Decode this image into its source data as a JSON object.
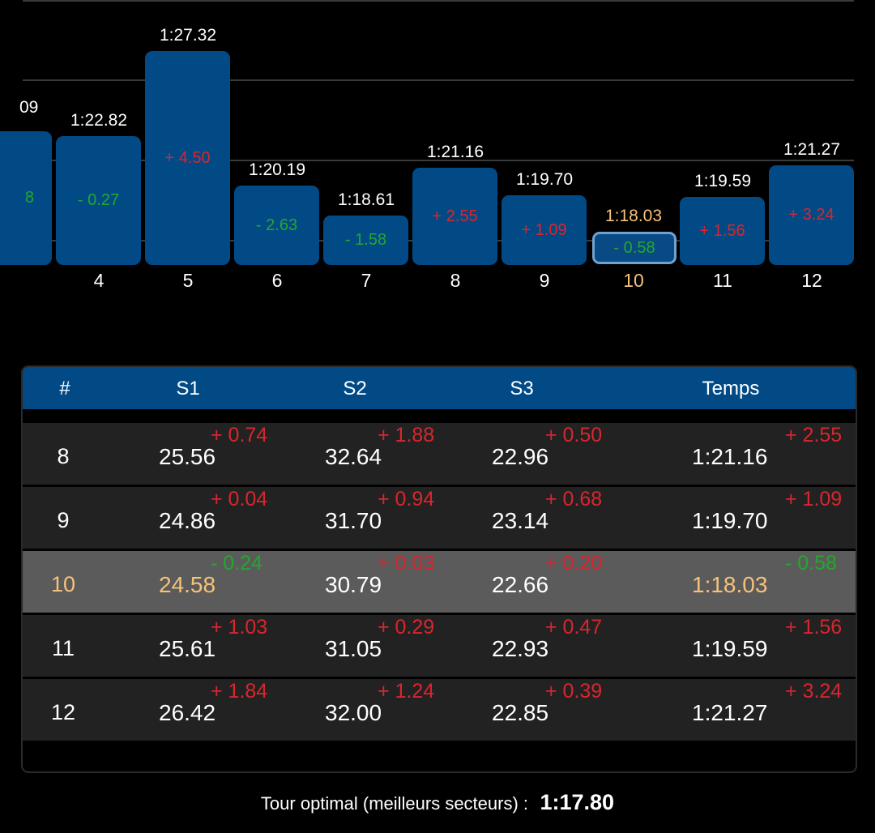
{
  "chart": {
    "partial_left": {
      "time": "09",
      "delta": "8"
    },
    "bars": [
      {
        "lap": "4",
        "time": "1:22.82",
        "delta": "- 0.27",
        "sign": "neg",
        "value": 82.82
      },
      {
        "lap": "5",
        "time": "1:27.32",
        "delta": "+ 4.50",
        "sign": "pos",
        "value": 87.32
      },
      {
        "lap": "6",
        "time": "1:20.19",
        "delta": "- 2.63",
        "sign": "neg",
        "value": 80.19
      },
      {
        "lap": "7",
        "time": "1:18.61",
        "delta": "- 1.58",
        "sign": "neg",
        "value": 78.61
      },
      {
        "lap": "8",
        "time": "1:21.16",
        "delta": "+ 2.55",
        "sign": "pos",
        "value": 81.16
      },
      {
        "lap": "9",
        "time": "1:19.70",
        "delta": "+ 1.09",
        "sign": "pos",
        "value": 79.7
      },
      {
        "lap": "10",
        "time": "1:18.03",
        "delta": "- 0.58",
        "sign": "neg",
        "value": 78.03,
        "selected": true
      },
      {
        "lap": "11",
        "time": "1:19.59",
        "delta": "+ 1.56",
        "sign": "pos",
        "value": 79.59
      },
      {
        "lap": "12",
        "time": "1:21.27",
        "delta": "+ 3.24",
        "sign": "pos",
        "value": 81.27
      }
    ]
  },
  "table": {
    "headers": {
      "lap": "#",
      "s1": "S1",
      "s2": "S2",
      "s3": "S3",
      "time": "Temps"
    },
    "rows": [
      {
        "lap": "8",
        "s1": "25.56",
        "s1d": "+ 0.74",
        "s1s": "pos",
        "s2": "32.64",
        "s2d": "+ 1.88",
        "s2s": "pos",
        "s3": "22.96",
        "s3d": "+ 0.50",
        "s3s": "pos",
        "time": "1:21.16",
        "td": "+ 2.55",
        "ts": "pos"
      },
      {
        "lap": "9",
        "s1": "24.86",
        "s1d": "+ 0.04",
        "s1s": "pos",
        "s2": "31.70",
        "s2d": "+ 0.94",
        "s2s": "pos",
        "s3": "23.14",
        "s3d": "+ 0.68",
        "s3s": "pos",
        "time": "1:19.70",
        "td": "+ 1.09",
        "ts": "pos"
      },
      {
        "lap": "10",
        "s1": "24.58",
        "s1d": "- 0.24",
        "s1s": "neg",
        "s2": "30.79",
        "s2d": "+ 0.03",
        "s2s": "pos",
        "s3": "22.66",
        "s3d": "+ 0.20",
        "s3s": "pos",
        "time": "1:18.03",
        "td": "- 0.58",
        "ts": "neg",
        "selected": true
      },
      {
        "lap": "11",
        "s1": "25.61",
        "s1d": "+ 1.03",
        "s1s": "pos",
        "s2": "31.05",
        "s2d": "+ 0.29",
        "s2s": "pos",
        "s3": "22.93",
        "s3d": "+ 0.47",
        "s3s": "pos",
        "time": "1:19.59",
        "td": "+ 1.56",
        "ts": "pos"
      },
      {
        "lap": "12",
        "s1": "26.42",
        "s1d": "+ 1.84",
        "s1s": "pos",
        "s2": "32.00",
        "s2d": "+ 1.24",
        "s2s": "pos",
        "s3": "22.85",
        "s3d": "+ 0.39",
        "s3s": "pos",
        "time": "1:21.27",
        "td": "+ 3.24",
        "ts": "pos"
      }
    ]
  },
  "footer": {
    "label": "Tour optimal (meilleurs secteurs) :",
    "value": "1:17.80"
  },
  "colors": {
    "accent": "#024A86",
    "positive": "#D8262D",
    "negative": "#22A82D",
    "highlight": "#F6C27A",
    "selected_row": "#5b5b5b"
  }
}
